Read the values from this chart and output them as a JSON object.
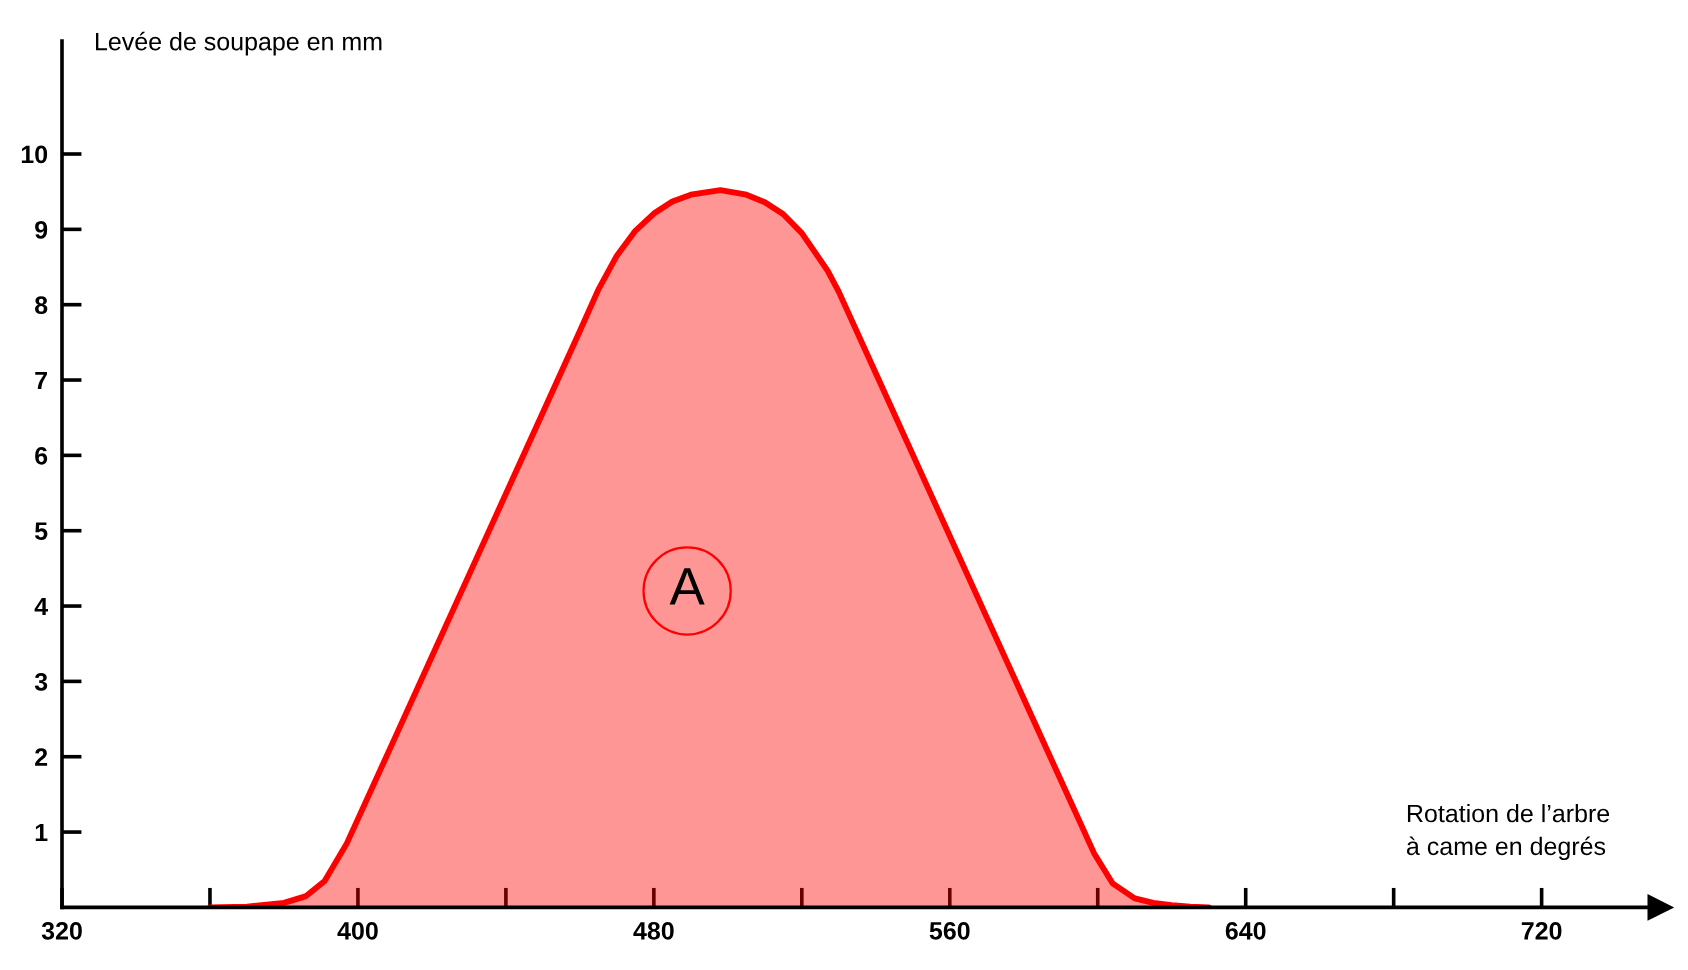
{
  "chart_data": {
    "type": "area",
    "xlabel": "Rotation de l’arbre\nà came en degrés",
    "ylabel": "Levée de soupape en mm",
    "x": [
      360,
      370,
      380,
      386,
      391,
      397,
      410,
      420,
      430,
      440,
      450,
      460,
      465,
      470,
      475,
      480,
      485,
      490,
      498,
      505,
      510,
      515,
      520,
      527,
      530,
      540,
      550,
      560,
      570,
      580,
      590,
      599,
      604,
      610,
      615,
      620,
      625,
      630
    ],
    "series": [
      {
        "color": "#ff0000",
        "values": [
          0,
          0.01,
          0.06,
          0.15,
          0.35,
          0.85,
          2.25,
          3.33,
          4.41,
          5.49,
          6.57,
          7.65,
          8.2,
          8.65,
          8.98,
          9.21,
          9.37,
          9.46,
          9.52,
          9.46,
          9.36,
          9.2,
          8.95,
          8.45,
          8.17,
          7.09,
          6.01,
          4.93,
          3.85,
          2.77,
          1.69,
          0.72,
          0.32,
          0.12,
          0.06,
          0.03,
          0.01,
          0
        ]
      }
    ],
    "xlim": [
      320,
      752
    ],
    "ylim": [
      0,
      11.5
    ],
    "xticks": [
      320,
      {
        "value": 360,
        "label": null
      },
      400,
      {
        "value": 440,
        "label": null
      },
      480,
      {
        "value": 520,
        "label": null
      },
      560,
      {
        "value": 600,
        "label": null
      },
      640,
      {
        "value": 680,
        "label": null
      },
      720
    ],
    "yticks": [
      1,
      2,
      3,
      4,
      5,
      6,
      7,
      8,
      9,
      10
    ],
    "annotations": [
      {
        "text": "A",
        "x": 489,
        "y": 4.2
      }
    ],
    "grid": false
  }
}
